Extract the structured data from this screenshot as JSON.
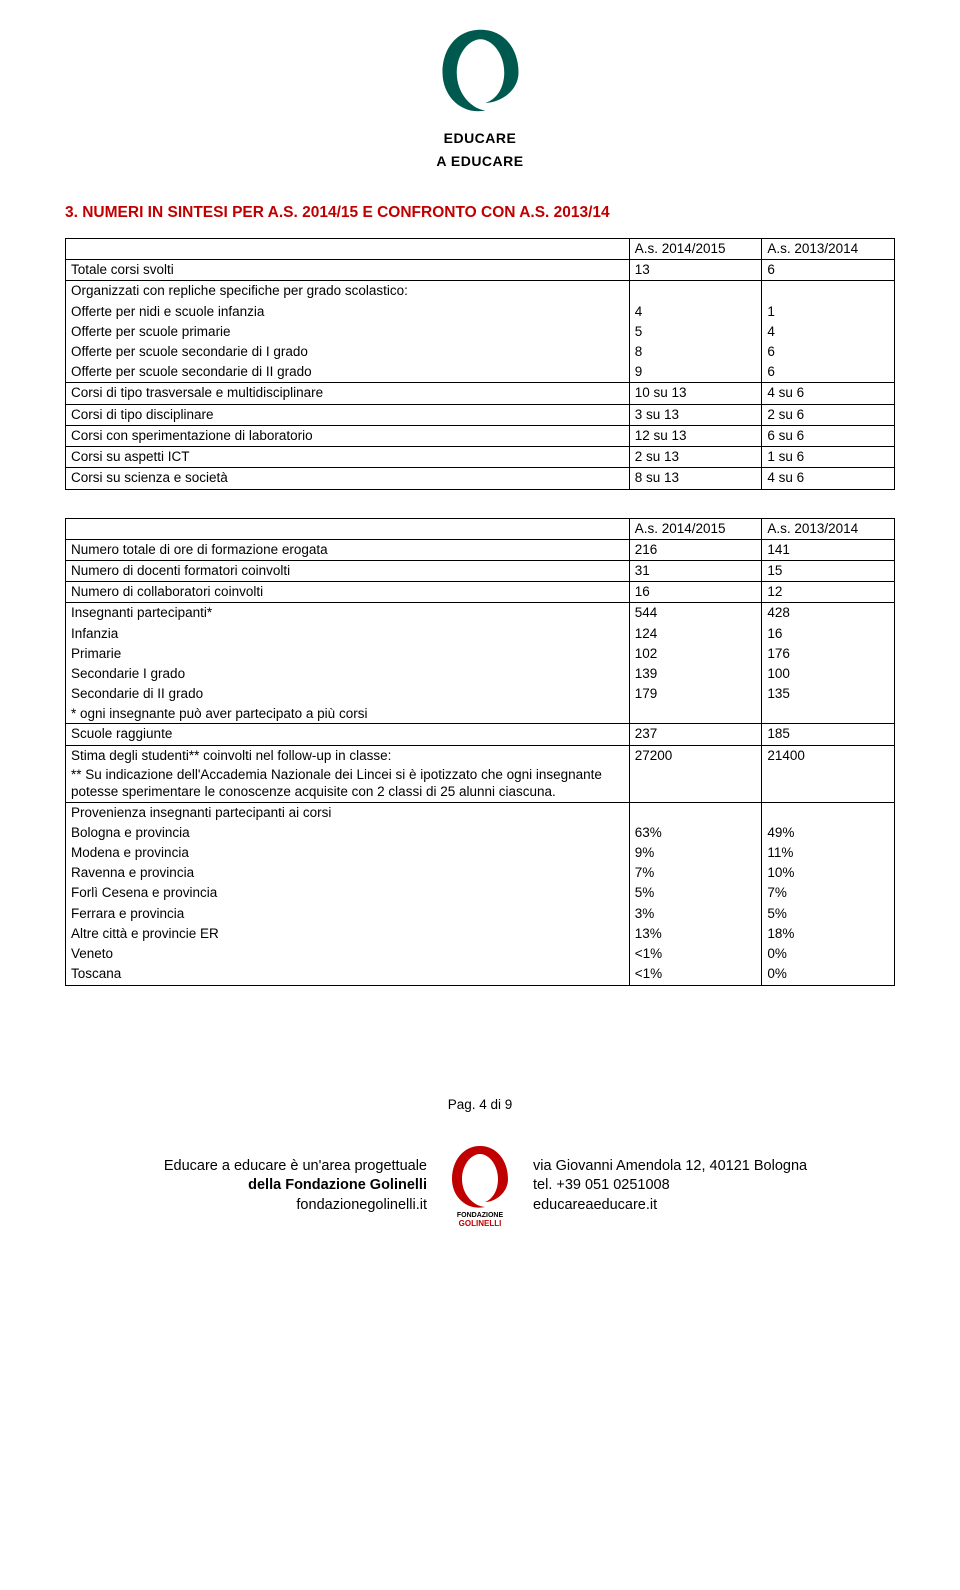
{
  "header_logo": {
    "line1": "EDUCARE",
    "line2": "A EDUCARE",
    "accent_color": "#c00000",
    "swirl_color": "#00594f"
  },
  "section_title": "3.  NUMERI IN SINTESI PER A.S. 2014/15 E CONFRONTO CON A.S. 2013/14",
  "table1": {
    "head": [
      "",
      "A.s. 2014/2015",
      "A.s. 2013/2014"
    ],
    "rows": [
      {
        "label": "Totale corsi svolti",
        "a": "13",
        "b": "6",
        "align": "left"
      },
      {
        "label": "Organizzati con repliche specifiche per grado scolastico:",
        "a": "",
        "b": "",
        "open_bottom": true,
        "align": "left"
      },
      {
        "label": "Offerte per nidi e scuole infanzia",
        "a": "4",
        "b": "1",
        "open_top": true,
        "open_bottom": true,
        "align": "right"
      },
      {
        "label": "Offerte per scuole primarie",
        "a": "5",
        "b": "4",
        "open_top": true,
        "open_bottom": true,
        "align": "right"
      },
      {
        "label": "Offerte per scuole secondarie di I grado",
        "a": "8",
        "b": "6",
        "open_top": true,
        "open_bottom": true,
        "align": "right"
      },
      {
        "label": "Offerte per scuole secondarie di II grado",
        "a": "9",
        "b": "6",
        "open_top": true,
        "align": "right"
      },
      {
        "label": "Corsi di tipo trasversale e multidisciplinare",
        "a": "10 su 13",
        "b": "4 su 6",
        "align": "left"
      },
      {
        "label": "Corsi di tipo disciplinare",
        "a": "3 su 13",
        "b": "2 su 6",
        "align": "left"
      },
      {
        "label": "Corsi con sperimentazione di laboratorio",
        "a": "12 su 13",
        "b": "6 su 6",
        "align": "left"
      },
      {
        "label": "Corsi su aspetti ICT",
        "a": "2 su 13",
        "b": "1 su 6",
        "align": "left"
      },
      {
        "label": "Corsi su scienza e società",
        "a": "8 su 13",
        "b": "4 su 6",
        "align": "left"
      }
    ]
  },
  "table2": {
    "head": [
      "",
      "A.s. 2014/2015",
      "A.s. 2013/2014"
    ],
    "rows": [
      {
        "label": "Numero totale di ore di formazione erogata",
        "a": "216",
        "b": "141",
        "align": "left"
      },
      {
        "label": "Numero di docenti formatori coinvolti",
        "a": "31",
        "b": "15",
        "align": "left"
      },
      {
        "label": "Numero di collaboratori coinvolti",
        "a": "16",
        "b": "12",
        "align": "left"
      },
      {
        "label": "Insegnanti partecipanti*",
        "a": "544",
        "b": "428",
        "open_bottom": true,
        "align": "left"
      },
      {
        "label": "Infanzia",
        "a": "124",
        "b": "16",
        "open_top": true,
        "open_bottom": true,
        "align": "right"
      },
      {
        "label": "Primarie",
        "a": "102",
        "b": "176",
        "open_top": true,
        "open_bottom": true,
        "align": "right"
      },
      {
        "label": "Secondarie I grado",
        "a": "139",
        "b": "100",
        "open_top": true,
        "open_bottom": true,
        "align": "right"
      },
      {
        "label": "Secondarie di II grado",
        "a": "179",
        "b": "135",
        "open_top": true,
        "open_bottom": true,
        "align": "right"
      },
      {
        "label": "* ogni insegnante può aver partecipato a più corsi",
        "a": "",
        "b": "",
        "open_top": true,
        "small": true,
        "align": "left"
      },
      {
        "label": "Scuole raggiunte",
        "a": "237",
        "b": "185",
        "align": "left"
      },
      {
        "label": "Stima degli studenti** coinvolti nel follow-up in classe:",
        "a": "27200",
        "b": "21400",
        "open_bottom": true,
        "align": "left"
      },
      {
        "label": "** Su indicazione dell'Accademia Nazionale dei Lincei si è ipotizzato che ogni insegnante potesse sperimentare le conoscenze acquisite con 2 classi di 25 alunni ciascuna.",
        "a": "",
        "b": "",
        "open_top": true,
        "small": true,
        "align": "left"
      },
      {
        "label": "Provenienza insegnanti partecipanti ai corsi",
        "a": "",
        "b": "",
        "open_bottom": true,
        "align": "left"
      },
      {
        "label": "Bologna e provincia",
        "a": "63%",
        "b": "49%",
        "open_top": true,
        "open_bottom": true,
        "align": "right"
      },
      {
        "label": "Modena e provincia",
        "a": "9%",
        "b": "11%",
        "open_top": true,
        "open_bottom": true,
        "align": "right"
      },
      {
        "label": "Ravenna e provincia",
        "a": "7%",
        "b": "10%",
        "open_top": true,
        "open_bottom": true,
        "align": "right"
      },
      {
        "label": "Forlì Cesena e provincia",
        "a": "5%",
        "b": "7%",
        "open_top": true,
        "open_bottom": true,
        "align": "right"
      },
      {
        "label": "Ferrara e provincia",
        "a": "3%",
        "b": "5%",
        "open_top": true,
        "open_bottom": true,
        "align": "right"
      },
      {
        "label": "Altre città e provincie ER",
        "a": "13%",
        "b": "18%",
        "open_top": true,
        "open_bottom": true,
        "align": "right"
      },
      {
        "label": "Veneto",
        "a": "<1%",
        "b": "0%",
        "open_top": true,
        "open_bottom": true,
        "align": "right"
      },
      {
        "label": "Toscana",
        "a": "<1%",
        "b": "0%",
        "open_top": true,
        "align": "right"
      }
    ]
  },
  "page_number": "Pag. 4 di 9",
  "footer": {
    "left_line1": "Educare a educare è un'area progettuale",
    "left_line2": "della Fondazione Golinelli",
    "left_line3": "fondazionegolinelli.it",
    "right_line1": "via Giovanni Amendola 12, 40121 Bologna",
    "right_line2": "tel. +39 051 0251008",
    "right_line3": "educareaeducare.it",
    "logo_label1": "FONDAZIONE",
    "logo_label2": "GOLINELLI"
  }
}
